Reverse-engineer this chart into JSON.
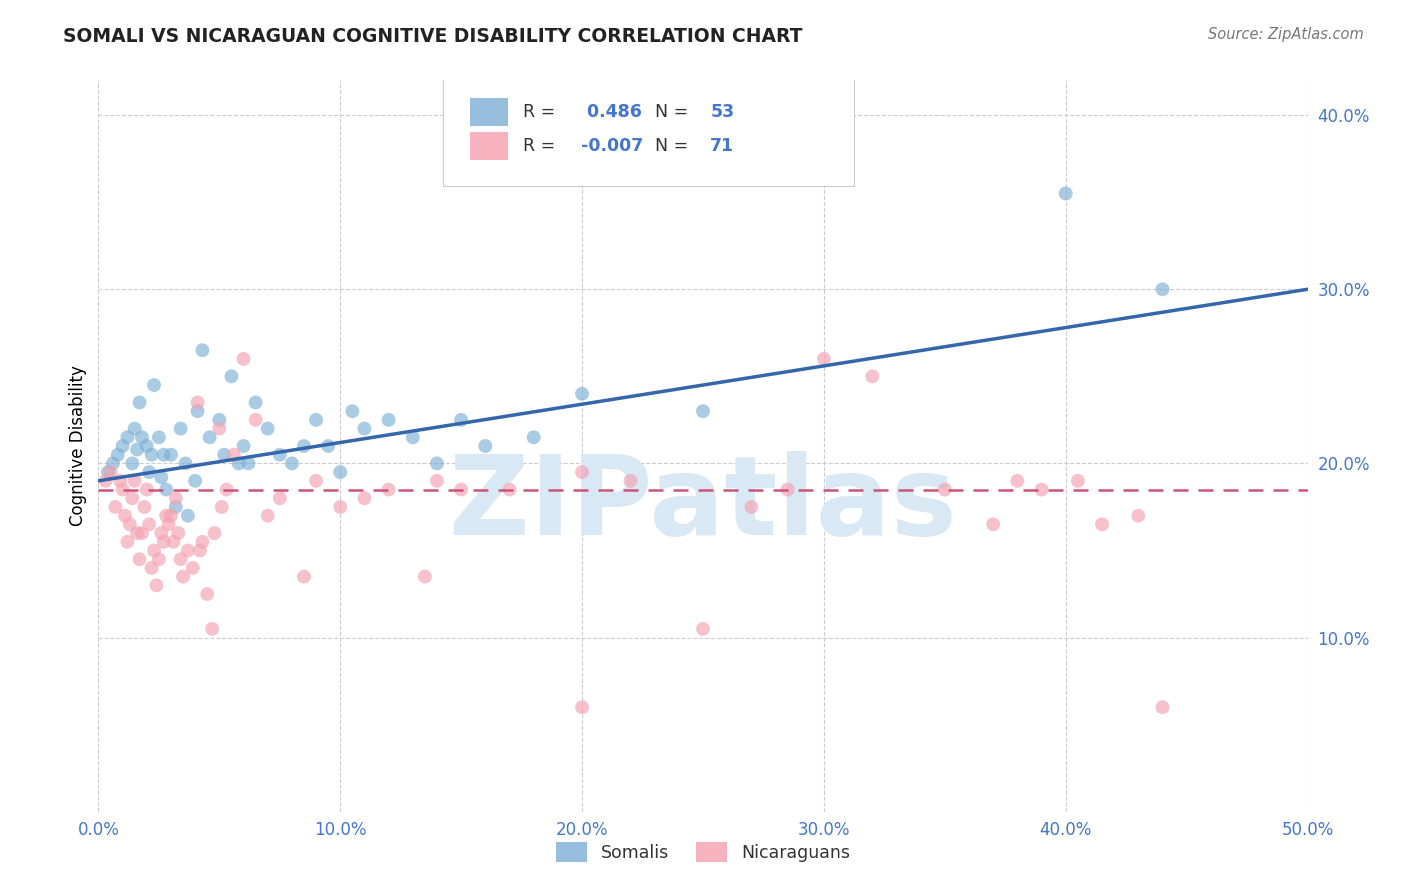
{
  "title": "SOMALI VS NICARAGUAN COGNITIVE DISABILITY CORRELATION CHART",
  "source": "Source: ZipAtlas.com",
  "xlabel_vals": [
    0,
    10,
    20,
    30,
    40,
    50
  ],
  "ylabel_vals": [
    10,
    20,
    30,
    40
  ],
  "xlim": [
    0,
    50
  ],
  "ylim": [
    0,
    42
  ],
  "ylabel": "Cognitive Disability",
  "watermark": "ZIPatlas",
  "legend_somali_R": "0.486",
  "legend_somali_N": "53",
  "legend_nicaraguan_R": "-0.007",
  "legend_nicaraguan_N": "71",
  "somali_color": "#7BAFD4",
  "nicaraguan_color": "#F4A0B0",
  "trendline_somali_color": "#3366AA",
  "trendline_nicaraguan_color": "#CC5577",
  "text_blue": "#4477CC",
  "somali_scatter": [
    [
      0.4,
      19.5
    ],
    [
      0.6,
      20.0
    ],
    [
      0.8,
      20.5
    ],
    [
      1.0,
      21.0
    ],
    [
      1.2,
      21.5
    ],
    [
      1.4,
      20.0
    ],
    [
      1.5,
      22.0
    ],
    [
      1.6,
      20.8
    ],
    [
      1.7,
      23.5
    ],
    [
      1.8,
      21.5
    ],
    [
      2.0,
      21.0
    ],
    [
      2.1,
      19.5
    ],
    [
      2.2,
      20.5
    ],
    [
      2.3,
      24.5
    ],
    [
      2.5,
      21.5
    ],
    [
      2.6,
      19.2
    ],
    [
      2.7,
      20.5
    ],
    [
      2.8,
      18.5
    ],
    [
      3.0,
      20.5
    ],
    [
      3.2,
      17.5
    ],
    [
      3.4,
      22.0
    ],
    [
      3.6,
      20.0
    ],
    [
      3.7,
      17.0
    ],
    [
      4.0,
      19.0
    ],
    [
      4.1,
      23.0
    ],
    [
      4.3,
      26.5
    ],
    [
      4.6,
      21.5
    ],
    [
      5.0,
      22.5
    ],
    [
      5.2,
      20.5
    ],
    [
      5.5,
      25.0
    ],
    [
      5.8,
      20.0
    ],
    [
      6.0,
      21.0
    ],
    [
      6.2,
      20.0
    ],
    [
      6.5,
      23.5
    ],
    [
      7.0,
      22.0
    ],
    [
      7.5,
      20.5
    ],
    [
      8.0,
      20.0
    ],
    [
      8.5,
      21.0
    ],
    [
      9.0,
      22.5
    ],
    [
      9.5,
      21.0
    ],
    [
      10.0,
      19.5
    ],
    [
      10.5,
      23.0
    ],
    [
      11.0,
      22.0
    ],
    [
      12.0,
      22.5
    ],
    [
      13.0,
      21.5
    ],
    [
      14.0,
      20.0
    ],
    [
      15.0,
      22.5
    ],
    [
      16.0,
      21.0
    ],
    [
      18.0,
      21.5
    ],
    [
      20.0,
      24.0
    ],
    [
      25.0,
      23.0
    ],
    [
      40.0,
      35.5
    ],
    [
      44.0,
      30.0
    ]
  ],
  "nicaraguan_scatter": [
    [
      0.3,
      19.0
    ],
    [
      0.5,
      19.5
    ],
    [
      0.7,
      17.5
    ],
    [
      0.9,
      19.0
    ],
    [
      1.0,
      18.5
    ],
    [
      1.1,
      17.0
    ],
    [
      1.2,
      15.5
    ],
    [
      1.3,
      16.5
    ],
    [
      1.4,
      18.0
    ],
    [
      1.5,
      19.0
    ],
    [
      1.6,
      16.0
    ],
    [
      1.7,
      14.5
    ],
    [
      1.8,
      16.0
    ],
    [
      1.9,
      17.5
    ],
    [
      2.0,
      18.5
    ],
    [
      2.1,
      16.5
    ],
    [
      2.2,
      14.0
    ],
    [
      2.3,
      15.0
    ],
    [
      2.4,
      13.0
    ],
    [
      2.5,
      14.5
    ],
    [
      2.6,
      16.0
    ],
    [
      2.7,
      15.5
    ],
    [
      2.8,
      17.0
    ],
    [
      2.9,
      16.5
    ],
    [
      3.0,
      17.0
    ],
    [
      3.1,
      15.5
    ],
    [
      3.2,
      18.0
    ],
    [
      3.3,
      16.0
    ],
    [
      3.4,
      14.5
    ],
    [
      3.5,
      13.5
    ],
    [
      3.7,
      15.0
    ],
    [
      3.9,
      14.0
    ],
    [
      4.1,
      23.5
    ],
    [
      4.2,
      15.0
    ],
    [
      4.3,
      15.5
    ],
    [
      4.5,
      12.5
    ],
    [
      4.7,
      10.5
    ],
    [
      4.8,
      16.0
    ],
    [
      5.0,
      22.0
    ],
    [
      5.1,
      17.5
    ],
    [
      5.3,
      18.5
    ],
    [
      5.6,
      20.5
    ],
    [
      6.0,
      26.0
    ],
    [
      6.5,
      22.5
    ],
    [
      7.0,
      17.0
    ],
    [
      7.5,
      18.0
    ],
    [
      8.5,
      13.5
    ],
    [
      9.0,
      19.0
    ],
    [
      10.0,
      17.5
    ],
    [
      11.0,
      18.0
    ],
    [
      12.0,
      18.5
    ],
    [
      13.5,
      13.5
    ],
    [
      14.0,
      19.0
    ],
    [
      15.0,
      18.5
    ],
    [
      17.0,
      18.5
    ],
    [
      20.0,
      19.5
    ],
    [
      22.0,
      19.0
    ],
    [
      25.0,
      10.5
    ],
    [
      27.0,
      17.5
    ],
    [
      28.5,
      18.5
    ],
    [
      30.0,
      26.0
    ],
    [
      32.0,
      25.0
    ],
    [
      35.0,
      18.5
    ],
    [
      37.0,
      16.5
    ],
    [
      38.0,
      19.0
    ],
    [
      39.0,
      18.5
    ],
    [
      40.5,
      19.0
    ],
    [
      41.5,
      16.5
    ],
    [
      43.0,
      17.0
    ],
    [
      44.0,
      6.0
    ],
    [
      20.0,
      6.0
    ]
  ]
}
